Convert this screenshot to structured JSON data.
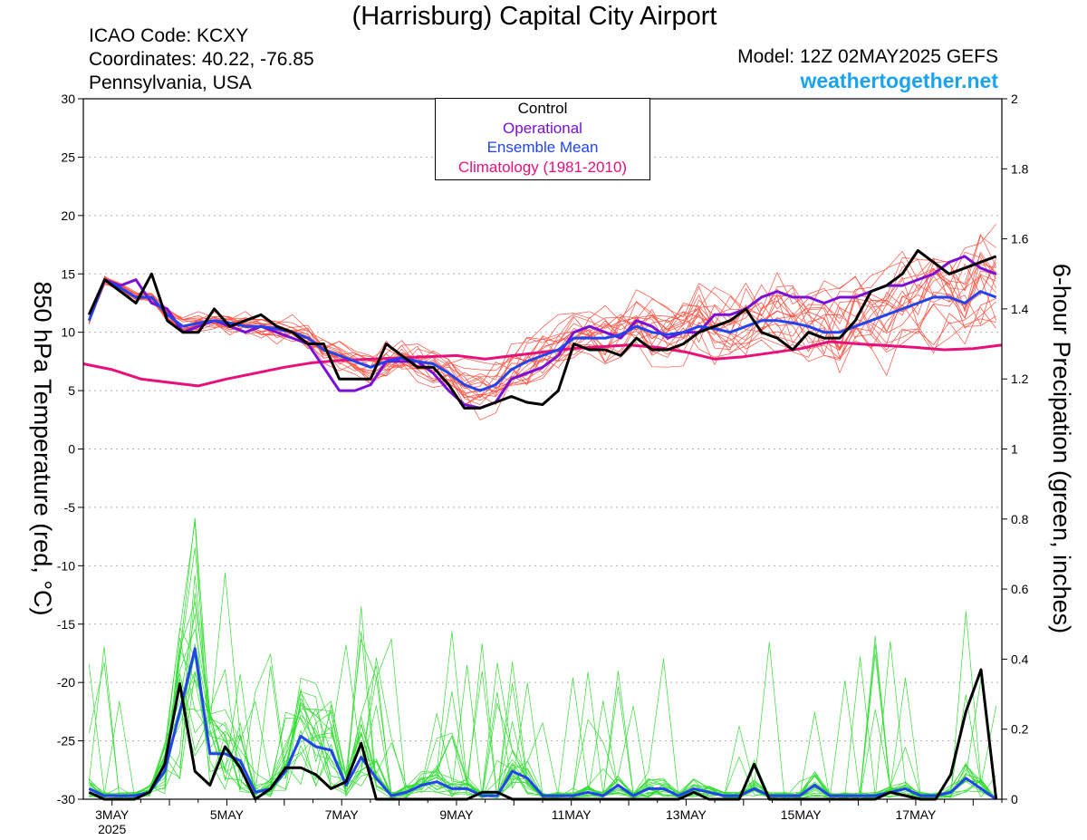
{
  "header": {
    "title": "(Harrisburg) Capital City Airport",
    "icao": "ICAO Code: KCXY",
    "coords": "Coordinates: 40.22, -76.85",
    "region": "Pennsylvania, USA",
    "model": "Model: 12Z 02MAY2025 GEFS",
    "site": "weathertogether.net"
  },
  "legend": {
    "control": "Control",
    "operational": "Operational",
    "ensemble_mean": "Ensemble Mean",
    "climatology": "Climatology (1981-2010)"
  },
  "colors": {
    "control": "#000000",
    "operational": "#7a0fd6",
    "ensemble_mean": "#2244ee",
    "climatology": "#e8107a",
    "members_temp": "#ff5040",
    "members_precip": "#33dd33",
    "site": "#1aa3f0"
  },
  "chart_data": {
    "type": "line",
    "ylabel_left": "850 hPa Temperature (red, °C)",
    "ylabel_right": "6-hour Precipation (green, inches)",
    "yticks_left": [
      "30",
      "25",
      "20",
      "15",
      "10",
      "5",
      "0",
      "-5",
      "-10",
      "-15",
      "-20",
      "-25",
      "-30"
    ],
    "yticks_right": [
      "2",
      "1.8",
      "1.6",
      "1.4",
      "1.2",
      "1",
      "0.8",
      "0.6",
      "0.4",
      "0.2",
      "0"
    ],
    "ylim_left": [
      -30,
      30
    ],
    "ylim_right": [
      0,
      2
    ],
    "xlim_days": [
      2.5,
      18.5
    ],
    "x_ticks": [
      {
        "day": 3,
        "label": "3MAY",
        "sub": "2025"
      },
      {
        "day": 5,
        "label": "5MAY"
      },
      {
        "day": 7,
        "label": "7MAY"
      },
      {
        "day": 9,
        "label": "9MAY"
      },
      {
        "day": 11,
        "label": "11MAY"
      },
      {
        "day": 13,
        "label": "13MAY"
      },
      {
        "day": 15,
        "label": "15MAY"
      },
      {
        "day": 17,
        "label": "17MAY"
      }
    ],
    "grid": "dotted horizontal",
    "temperature": {
      "control": [
        11.5,
        14.5,
        13.5,
        12.5,
        15.0,
        11.0,
        10.0,
        10.0,
        12.0,
        10.5,
        11.0,
        11.5,
        10.5,
        10.0,
        9.0,
        9.0,
        6.0,
        6.0,
        6.0,
        9.0,
        8.0,
        7.0,
        7.0,
        5.5,
        3.5,
        3.5,
        4.0,
        4.5,
        4.0,
        3.8,
        5.0,
        9.0,
        8.5,
        8.5,
        8.0,
        9.5,
        8.5,
        8.5,
        9.0,
        10.0,
        10.5,
        11.0,
        12.0,
        10.0,
        9.5,
        8.5,
        10.0,
        9.5,
        9.5,
        11.0,
        13.5,
        14.0,
        15.0,
        17.0,
        16.0,
        15.0,
        15.5,
        16.0,
        16.5
      ],
      "operational": [
        11.5,
        14.5,
        14.0,
        14.5,
        12.5,
        12.0,
        10.0,
        10.5,
        11.0,
        10.5,
        10.0,
        10.5,
        10.0,
        9.5,
        9.0,
        7.0,
        5.0,
        5.0,
        5.5,
        7.5,
        7.5,
        7.5,
        6.5,
        5.0,
        3.8,
        3.5,
        4.0,
        6.0,
        6.5,
        7.0,
        8.0,
        10.0,
        10.5,
        10.0,
        9.5,
        11.0,
        10.5,
        9.5,
        10.0,
        10.0,
        11.5,
        11.5,
        12.0,
        13.0,
        13.5,
        13.0,
        13.0,
        12.5,
        13.0,
        13.0,
        13.5,
        14.0,
        14.0,
        14.5,
        15.0,
        16.0,
        16.5,
        15.5,
        15.0
      ],
      "ensemble_mean": [
        11.0,
        14.5,
        13.8,
        13.0,
        13.0,
        11.5,
        10.5,
        10.8,
        11.0,
        10.8,
        10.5,
        10.5,
        10.3,
        10.0,
        9.5,
        8.5,
        8.0,
        7.5,
        7.0,
        7.5,
        7.8,
        7.5,
        7.3,
        6.5,
        5.5,
        5.0,
        5.5,
        6.8,
        7.5,
        8.0,
        8.5,
        9.5,
        9.5,
        9.5,
        9.8,
        10.5,
        10.0,
        9.8,
        10.0,
        10.5,
        10.3,
        10.0,
        10.5,
        11.0,
        11.0,
        10.8,
        10.5,
        10.0,
        10.0,
        10.5,
        11.0,
        11.5,
        12.0,
        12.5,
        13.0,
        13.0,
        12.5,
        13.5,
        13.0
      ],
      "climatology": [
        [
          2.5,
          7.3
        ],
        [
          3.0,
          6.8
        ],
        [
          3.5,
          6.0
        ],
        [
          4.0,
          5.7
        ],
        [
          4.5,
          5.4
        ],
        [
          5.0,
          6.0
        ],
        [
          5.5,
          6.5
        ],
        [
          6.0,
          7.0
        ],
        [
          6.5,
          7.4
        ],
        [
          7.0,
          7.6
        ],
        [
          8.0,
          7.8
        ],
        [
          9.0,
          8.0
        ],
        [
          9.5,
          7.7
        ],
        [
          10.0,
          8.0
        ],
        [
          11.0,
          8.6
        ],
        [
          12.0,
          8.9
        ],
        [
          12.5,
          8.7
        ],
        [
          13.0,
          8.3
        ],
        [
          13.5,
          7.7
        ],
        [
          14.0,
          7.9
        ],
        [
          15.0,
          8.6
        ],
        [
          15.5,
          9.2
        ],
        [
          16.0,
          9.0
        ],
        [
          17.0,
          8.7
        ],
        [
          17.5,
          8.5
        ],
        [
          18.0,
          8.6
        ],
        [
          18.5,
          8.9
        ]
      ]
    },
    "precipitation": {
      "control": [
        0.02,
        0.0,
        0.0,
        0.0,
        0.02,
        0.1,
        0.33,
        0.08,
        0.04,
        0.15,
        0.09,
        0.0,
        0.03,
        0.09,
        0.09,
        0.07,
        0.03,
        0.05,
        0.16,
        0.0,
        0.0,
        0.0,
        0.0,
        0.0,
        0.0,
        0.0,
        0.02,
        0.02,
        0.0,
        0.0,
        0.0,
        0.0,
        0.0,
        0.0,
        0.0,
        0.0,
        0.0,
        0.0,
        0.0,
        0.0,
        0.02,
        0.0,
        0.0,
        0.0,
        0.1,
        0.0,
        0.0,
        0.0,
        0.0,
        0.0,
        0.0,
        0.0,
        0.0,
        0.02,
        0.01,
        0.0,
        0.0,
        0.07,
        0.25,
        0.37,
        0.0
      ],
      "ensemble_mean": [
        0.03,
        0.01,
        0.01,
        0.01,
        0.02,
        0.08,
        0.25,
        0.43,
        0.13,
        0.13,
        0.11,
        0.02,
        0.03,
        0.08,
        0.18,
        0.15,
        0.14,
        0.04,
        0.12,
        0.06,
        0.01,
        0.02,
        0.04,
        0.05,
        0.03,
        0.03,
        0.01,
        0.01,
        0.08,
        0.06,
        0.01,
        0.01,
        0.01,
        0.02,
        0.01,
        0.04,
        0.01,
        0.03,
        0.03,
        0.01,
        0.03,
        0.02,
        0.01,
        0.01,
        0.03,
        0.01,
        0.01,
        0.01,
        0.04,
        0.01,
        0.01,
        0.01,
        0.01,
        0.02,
        0.03,
        0.01,
        0.01,
        0.02,
        0.06,
        0.03,
        0.0
      ]
    }
  }
}
